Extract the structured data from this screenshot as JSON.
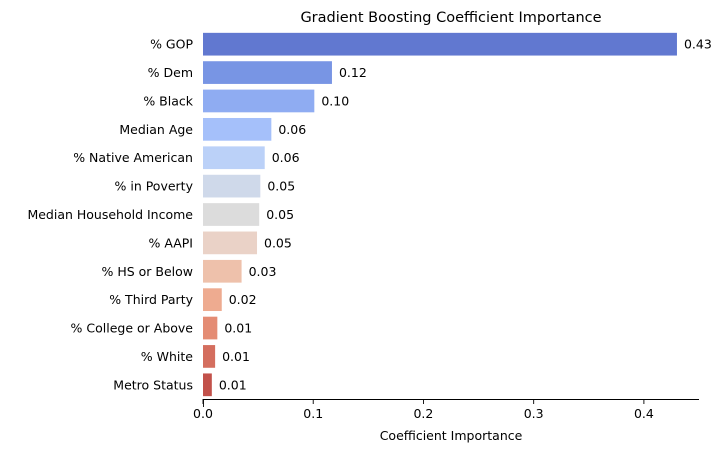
{
  "chart_data": {
    "type": "bar",
    "orientation": "horizontal",
    "title": "Gradient Boosting Coefficient Importance",
    "xlabel": "Coefficient Importance",
    "ylabel": "",
    "xlim": [
      0,
      0.45
    ],
    "xticks": [
      0.0,
      0.1,
      0.2,
      0.3,
      0.4
    ],
    "xtick_labels": [
      "0.0",
      "0.1",
      "0.2",
      "0.3",
      "0.4"
    ],
    "grid": false,
    "legend": "none",
    "palette": "coolwarm",
    "categories": [
      "% GOP",
      "% Dem",
      "% Black",
      "Median Age",
      "% Native American",
      "% in Poverty",
      "Median Household Income",
      "% AAPI",
      "% HS or Below",
      "% Third Party",
      "% College or Above",
      "% White",
      "Metro Status"
    ],
    "values": [
      0.43,
      0.117,
      0.101,
      0.062,
      0.056,
      0.052,
      0.051,
      0.049,
      0.035,
      0.017,
      0.013,
      0.011,
      0.008
    ],
    "value_labels": [
      "0.43",
      "0.12",
      "0.10",
      "0.06",
      "0.06",
      "0.05",
      "0.05",
      "0.05",
      "0.03",
      "0.02",
      "0.01",
      "0.01",
      "0.01"
    ],
    "colors": [
      "#6178d0",
      "#7895e4",
      "#8facf2",
      "#a5c0fa",
      "#bbd1f8",
      "#cfd9ea",
      "#dcdcdc",
      "#ead2c7",
      "#eec1ab",
      "#eeab90",
      "#e48c74",
      "#d46e5e",
      "#c2514a"
    ]
  }
}
